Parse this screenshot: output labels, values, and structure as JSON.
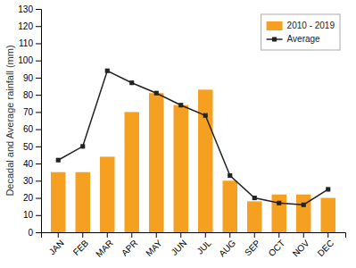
{
  "chart_data": {
    "type": "bar",
    "ylabel": "Decadal and Average rainfall (mm)",
    "categories": [
      "JAN",
      "FEB",
      "MAR",
      "APR",
      "MAY",
      "JUN",
      "JUL",
      "AUG",
      "SEP",
      "OCT",
      "NOV",
      "DEC"
    ],
    "series": [
      {
        "name": "2010 - 2019",
        "type": "bar",
        "color": "#F5A020",
        "values": [
          35,
          35,
          44,
          70,
          81,
          74,
          83,
          30,
          18,
          22,
          22,
          20
        ]
      },
      {
        "name": "Average",
        "type": "line",
        "color": "#222222",
        "marker": "square",
        "values": [
          42,
          50,
          94,
          87,
          81,
          74,
          68,
          33,
          20,
          17,
          16,
          25
        ]
      }
    ],
    "ylim": [
      0,
      130
    ],
    "yticks": [
      0,
      10,
      20,
      30,
      40,
      50,
      60,
      70,
      80,
      90,
      100,
      110,
      120,
      130
    ],
    "grid": false,
    "legend": "upper right"
  }
}
